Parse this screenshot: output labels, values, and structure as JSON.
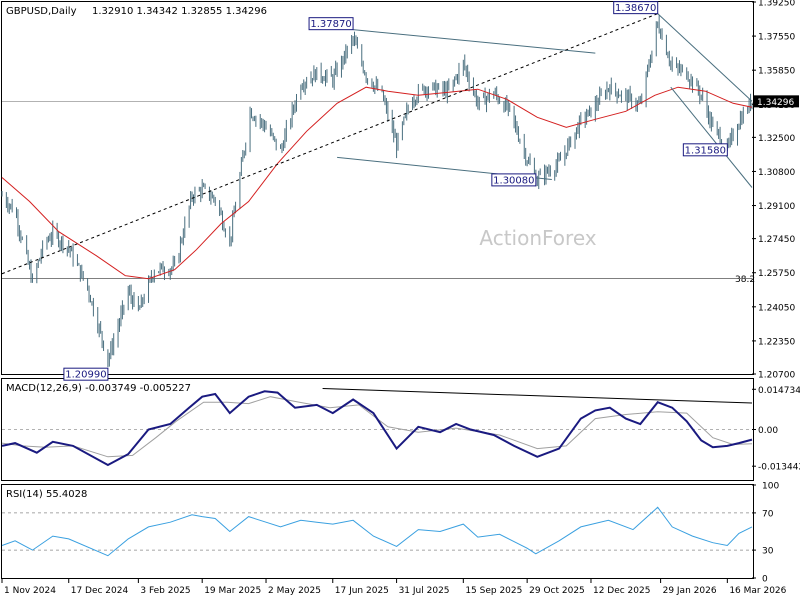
{
  "colors": {
    "background": "#ffffff",
    "frame": "#000000",
    "candle": "#4a6f7f",
    "sma": "#d42020",
    "trend": "#4a6f7f",
    "macd": "#1a1a80",
    "signal": "#a0a0a0",
    "rsi": "#3aa0e0",
    "current_price_bg": "#000000",
    "label_border": "#1a1a80",
    "watermark": "#c8c8c8"
  },
  "chart_data": [
    {
      "type": "candlestick",
      "title": "GBPUSD,Daily",
      "ohlc_text": "1.32910 1.34342 1.32855 1.34296",
      "current_price": 1.34296,
      "current_price_label": "1.34296",
      "watermark": "ActionForex",
      "y_ticks": [
        "1.39250",
        "1.37550",
        "1.35850",
        "1.34150",
        "1.32500",
        "1.30800",
        "1.29100",
        "1.27450",
        "1.25750",
        "1.24050",
        "1.22350",
        "1.20700"
      ],
      "y_range": [
        1.207,
        1.3925
      ],
      "x_ticks": [
        "1 Nov 2024",
        "17 Dec 2024",
        "3 Feb 2025",
        "19 Mar 2025",
        "2 May 2025",
        "17 Jun 2025",
        "31 Jul 2025",
        "15 Sep 2025",
        "29 Oct 2025",
        "12 Dec 2025",
        "29 Jan 2026",
        "16 Mar 2026"
      ],
      "x_range": [
        "2024-11-01",
        "2026-04-02"
      ],
      "fib_level_label": "38.2",
      "fib_level_value": 1.2547,
      "annotations": [
        {
          "label": "1.20990",
          "date": "2025-01-13",
          "value": 1.2099
        },
        {
          "label": "1.37870",
          "date": "2025-07-01",
          "value": 1.3787
        },
        {
          "label": "1.30080",
          "date": "2025-11-04",
          "value": 1.3008
        },
        {
          "label": "1.38670",
          "date": "2026-01-27",
          "value": 1.3867
        },
        {
          "label": "1.31580",
          "date": "2026-03-16",
          "value": 1.3158
        }
      ],
      "trendlines": [
        {
          "style": "solid",
          "points": [
            [
              "2025-07-01",
              1.3787
            ],
            [
              "2025-12-15",
              1.367
            ]
          ]
        },
        {
          "style": "solid",
          "points": [
            [
              "2025-06-20",
              1.315
            ],
            [
              "2025-11-15",
              1.304
            ]
          ]
        },
        {
          "style": "dashed",
          "points": [
            [
              "2024-11-01",
              1.257
            ],
            [
              "2026-01-27",
              1.3867
            ]
          ]
        },
        {
          "style": "solid",
          "points": [
            [
              "2026-01-27",
              1.3867
            ],
            [
              "2026-04-02",
              1.343
            ]
          ]
        },
        {
          "style": "solid",
          "points": [
            [
              "2026-02-05",
              1.35
            ],
            [
              "2026-04-02",
              1.3
            ]
          ]
        }
      ],
      "price_path": [
        [
          "2024-11-01",
          1.296
        ],
        [
          "2024-11-10",
          1.288
        ],
        [
          "2024-11-22",
          1.253
        ],
        [
          "2024-11-30",
          1.272
        ],
        [
          "2024-12-06",
          1.277
        ],
        [
          "2024-12-17",
          1.27
        ],
        [
          "2024-12-30",
          1.25
        ],
        [
          "2025-01-13",
          1.214
        ],
        [
          "2025-01-27",
          1.248
        ],
        [
          "2025-02-03",
          1.238
        ],
        [
          "2025-02-14",
          1.259
        ],
        [
          "2025-02-28",
          1.26
        ],
        [
          "2025-03-12",
          1.296
        ],
        [
          "2025-03-19",
          1.299
        ],
        [
          "2025-03-28",
          1.294
        ],
        [
          "2025-04-07",
          1.273
        ],
        [
          "2025-04-21",
          1.338
        ],
        [
          "2025-05-02",
          1.33
        ],
        [
          "2025-05-12",
          1.318
        ],
        [
          "2025-05-26",
          1.352
        ],
        [
          "2025-06-06",
          1.357
        ],
        [
          "2025-06-17",
          1.354
        ],
        [
          "2025-07-01",
          1.374
        ],
        [
          "2025-07-10",
          1.356
        ],
        [
          "2025-07-21",
          1.346
        ],
        [
          "2025-07-31",
          1.321
        ],
        [
          "2025-08-10",
          1.344
        ],
        [
          "2025-08-20",
          1.35
        ],
        [
          "2025-09-05",
          1.348
        ],
        [
          "2025-09-15",
          1.362
        ],
        [
          "2025-09-25",
          1.342
        ],
        [
          "2025-10-06",
          1.347
        ],
        [
          "2025-10-17",
          1.338
        ],
        [
          "2025-10-29",
          1.314
        ],
        [
          "2025-11-04",
          1.304
        ],
        [
          "2025-11-20",
          1.312
        ],
        [
          "2025-12-05",
          1.333
        ],
        [
          "2025-12-12",
          1.338
        ],
        [
          "2025-12-24",
          1.35
        ],
        [
          "2026-01-05",
          1.345
        ],
        [
          "2026-01-15",
          1.341
        ],
        [
          "2026-01-27",
          1.382
        ],
        [
          "2026-02-06",
          1.36
        ],
        [
          "2026-02-16",
          1.357
        ],
        [
          "2026-02-26",
          1.346
        ],
        [
          "2026-03-06",
          1.33
        ],
        [
          "2026-03-16",
          1.319
        ],
        [
          "2026-03-24",
          1.333
        ],
        [
          "2026-04-02",
          1.343
        ]
      ],
      "sma_path": [
        [
          "2024-11-01",
          1.305
        ],
        [
          "2024-11-20",
          1.293
        ],
        [
          "2024-12-10",
          1.278
        ],
        [
          "2025-01-05",
          1.266
        ],
        [
          "2025-01-25",
          1.256
        ],
        [
          "2025-02-10",
          1.2545
        ],
        [
          "2025-02-28",
          1.259
        ],
        [
          "2025-03-15",
          1.269
        ],
        [
          "2025-04-01",
          1.282
        ],
        [
          "2025-04-20",
          1.293
        ],
        [
          "2025-05-10",
          1.312
        ],
        [
          "2025-05-30",
          1.328
        ],
        [
          "2025-06-20",
          1.342
        ],
        [
          "2025-07-10",
          1.35
        ],
        [
          "2025-07-25",
          1.348
        ],
        [
          "2025-08-15",
          1.346
        ],
        [
          "2025-09-05",
          1.3475
        ],
        [
          "2025-09-25",
          1.349
        ],
        [
          "2025-10-15",
          1.344
        ],
        [
          "2025-11-05",
          1.335
        ],
        [
          "2025-11-25",
          1.33
        ],
        [
          "2025-12-15",
          1.334
        ],
        [
          "2026-01-05",
          1.338
        ],
        [
          "2026-01-25",
          1.346
        ],
        [
          "2026-02-10",
          1.35
        ],
        [
          "2026-03-01",
          1.348
        ],
        [
          "2026-03-20",
          1.342
        ],
        [
          "2026-04-02",
          1.34
        ]
      ]
    },
    {
      "type": "line",
      "title": "MACD(12,26,9) -0.003749 -0.005227",
      "y_ticks": [
        "0.014734",
        "0.00",
        "-0.013442"
      ],
      "y_range": [
        -0.0185,
        0.0185
      ],
      "trendline": [
        [
          "2025-06-10",
          0.015
        ],
        [
          "2026-04-02",
          0.0097
        ]
      ],
      "series": [
        {
          "values": [
            [
              "2024-11-01",
              -0.006
            ],
            [
              "2024-11-10",
              -0.005
            ],
            [
              "2024-11-25",
              -0.0085
            ],
            [
              "2024-12-06",
              -0.0045
            ],
            [
              "2024-12-20",
              -0.006
            ],
            [
              "2025-01-13",
              -0.013
            ],
            [
              "2025-01-27",
              -0.009
            ],
            [
              "2025-02-10",
              0.0
            ],
            [
              "2025-02-25",
              0.002
            ],
            [
              "2025-03-10",
              0.008
            ],
            [
              "2025-03-19",
              0.012
            ],
            [
              "2025-03-28",
              0.013
            ],
            [
              "2025-04-07",
              0.006
            ],
            [
              "2025-04-20",
              0.012
            ],
            [
              "2025-05-01",
              0.014
            ],
            [
              "2025-05-10",
              0.0135
            ],
            [
              "2025-05-22",
              0.008
            ],
            [
              "2025-06-06",
              0.009
            ],
            [
              "2025-06-17",
              0.006
            ],
            [
              "2025-07-01",
              0.011
            ],
            [
              "2025-07-15",
              0.006
            ],
            [
              "2025-07-31",
              -0.007
            ],
            [
              "2025-08-15",
              0.001
            ],
            [
              "2025-08-30",
              -0.001
            ],
            [
              "2025-09-10",
              0.002
            ],
            [
              "2025-09-20",
              0.0
            ],
            [
              "2025-10-06",
              -0.002
            ],
            [
              "2025-10-20",
              -0.006
            ],
            [
              "2025-11-05",
              -0.01
            ],
            [
              "2025-11-20",
              -0.007
            ],
            [
              "2025-12-05",
              0.004
            ],
            [
              "2025-12-15",
              0.007
            ],
            [
              "2025-12-25",
              0.008
            ],
            [
              "2026-01-05",
              0.004
            ],
            [
              "2026-01-15",
              0.002
            ],
            [
              "2026-01-27",
              0.01
            ],
            [
              "2026-02-06",
              0.008
            ],
            [
              "2026-02-16",
              0.003
            ],
            [
              "2026-02-26",
              -0.004
            ],
            [
              "2026-03-06",
              -0.0065
            ],
            [
              "2026-03-16",
              -0.006
            ],
            [
              "2026-03-24",
              -0.005
            ],
            [
              "2026-04-02",
              -0.0037
            ]
          ]
        },
        {
          "values": [
            [
              "2024-11-01",
              -0.005
            ],
            [
              "2024-11-15",
              -0.006
            ],
            [
              "2024-12-01",
              -0.0065
            ],
            [
              "2024-12-20",
              -0.006
            ],
            [
              "2025-01-13",
              -0.01
            ],
            [
              "2025-01-30",
              -0.0095
            ],
            [
              "2025-02-15",
              -0.003
            ],
            [
              "2025-03-01",
              0.003
            ],
            [
              "2025-03-20",
              0.01
            ],
            [
              "2025-04-05",
              0.01
            ],
            [
              "2025-04-20",
              0.0095
            ],
            [
              "2025-05-05",
              0.012
            ],
            [
              "2025-05-25",
              0.01
            ],
            [
              "2025-06-15",
              0.008
            ],
            [
              "2025-07-05",
              0.009
            ],
            [
              "2025-07-25",
              0.001
            ],
            [
              "2025-08-15",
              -0.001
            ],
            [
              "2025-09-10",
              0.0005
            ],
            [
              "2025-10-10",
              -0.002
            ],
            [
              "2025-11-05",
              -0.007
            ],
            [
              "2025-11-25",
              -0.006
            ],
            [
              "2025-12-15",
              0.004
            ],
            [
              "2026-01-05",
              0.0055
            ],
            [
              "2026-01-27",
              0.0065
            ],
            [
              "2026-02-16",
              0.006
            ],
            [
              "2026-03-06",
              -0.003
            ],
            [
              "2026-03-20",
              -0.0055
            ],
            [
              "2026-04-02",
              -0.0052
            ]
          ]
        }
      ]
    },
    {
      "type": "line",
      "title": "RSI(14) 55.4028",
      "y_ticks": [
        "100",
        "70",
        "30",
        "0"
      ],
      "y_range": [
        0,
        100
      ],
      "levels": [
        70,
        30
      ],
      "series": [
        {
          "values": [
            [
              "2024-11-01",
              35
            ],
            [
              "2024-11-10",
              40
            ],
            [
              "2024-11-22",
              30
            ],
            [
              "2024-12-06",
              45
            ],
            [
              "2024-12-17",
              42
            ],
            [
              "2025-01-13",
              24
            ],
            [
              "2025-01-27",
              42
            ],
            [
              "2025-02-10",
              55
            ],
            [
              "2025-02-25",
              60
            ],
            [
              "2025-03-12",
              68
            ],
            [
              "2025-03-19",
              66
            ],
            [
              "2025-03-28",
              64
            ],
            [
              "2025-04-07",
              50
            ],
            [
              "2025-04-20",
              66
            ],
            [
              "2025-05-02",
              60
            ],
            [
              "2025-05-12",
              55
            ],
            [
              "2025-05-26",
              62
            ],
            [
              "2025-06-06",
              60
            ],
            [
              "2025-06-17",
              58
            ],
            [
              "2025-07-01",
              62
            ],
            [
              "2025-07-15",
              45
            ],
            [
              "2025-07-31",
              34
            ],
            [
              "2025-08-15",
              52
            ],
            [
              "2025-08-30",
              50
            ],
            [
              "2025-09-15",
              58
            ],
            [
              "2025-09-25",
              44
            ],
            [
              "2025-10-10",
              47
            ],
            [
              "2025-10-29",
              32
            ],
            [
              "2025-11-04",
              26
            ],
            [
              "2025-11-20",
              40
            ],
            [
              "2025-12-05",
              55
            ],
            [
              "2025-12-24",
              62
            ],
            [
              "2026-01-10",
              52
            ],
            [
              "2026-01-27",
              76
            ],
            [
              "2026-02-06",
              55
            ],
            [
              "2026-02-20",
              45
            ],
            [
              "2026-03-06",
              38
            ],
            [
              "2026-03-16",
              35
            ],
            [
              "2026-03-24",
              48
            ],
            [
              "2026-04-02",
              55
            ]
          ]
        }
      ]
    }
  ]
}
